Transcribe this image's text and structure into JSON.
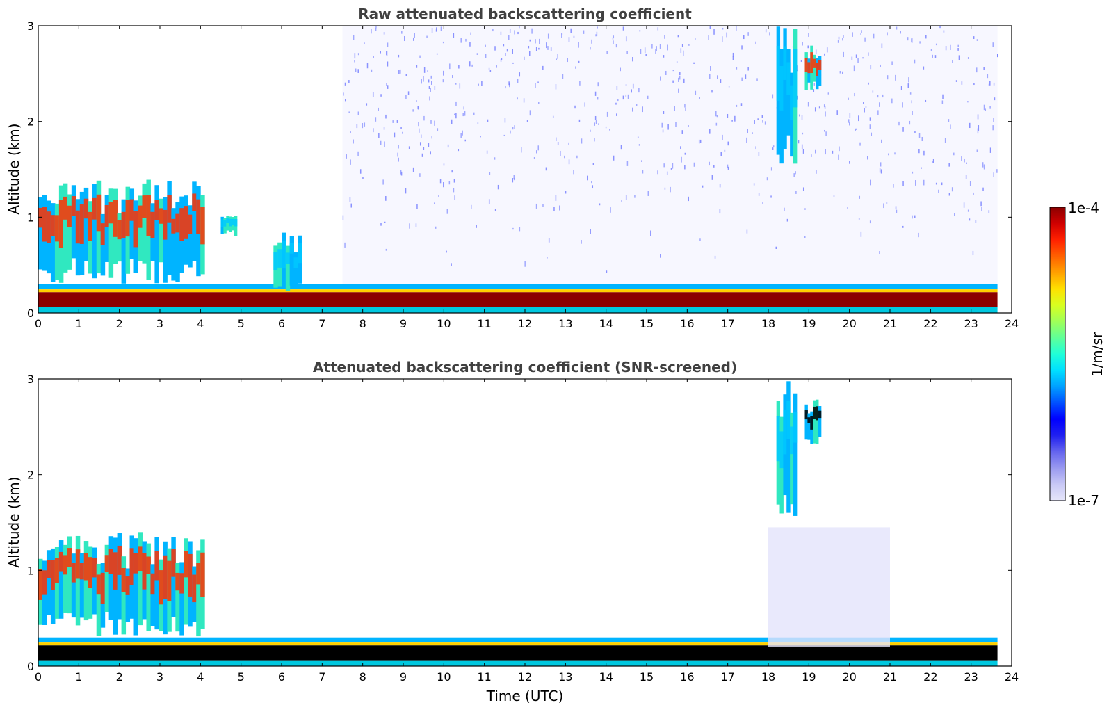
{
  "chart_data": [
    {
      "type": "heatmap",
      "title": "Raw attenuated backscattering coefficient",
      "xlabel": "",
      "ylabel": "Altitude (km)",
      "xlim": [
        0,
        24
      ],
      "ylim": [
        0,
        3
      ],
      "xticks": [
        "0",
        "1",
        "2",
        "3",
        "4",
        "5",
        "6",
        "7",
        "8",
        "9",
        "10",
        "11",
        "12",
        "13",
        "14",
        "15",
        "16",
        "17",
        "18",
        "19",
        "20",
        "21",
        "22",
        "23",
        "24"
      ],
      "yticks": [
        "0",
        "1",
        "2",
        "3"
      ],
      "data_end_hour": 23.65,
      "features": [
        {
          "name": "boundary-layer",
          "time": [
            0,
            23.65
          ],
          "altitude_km": [
            0,
            0.3
          ],
          "intensity": "high"
        },
        {
          "name": "low-cloud-morning",
          "time": [
            0,
            4.1
          ],
          "altitude_km": [
            0.3,
            1.4
          ],
          "intensity": "high"
        },
        {
          "name": "isolated-cloud",
          "time": [
            4.5,
            4.9
          ],
          "altitude_km": [
            0.8,
            1.05
          ],
          "intensity": "medium"
        },
        {
          "name": "isolated-cloud",
          "time": [
            5.8,
            6.5
          ],
          "altitude_km": [
            0.2,
            0.85
          ],
          "intensity": "medium"
        },
        {
          "name": "background-noise",
          "time": [
            7.5,
            23.65
          ],
          "altitude_km": [
            0.3,
            3.0
          ],
          "intensity": "low"
        },
        {
          "name": "high-cloud",
          "time": [
            18.2,
            18.7
          ],
          "altitude_km": [
            1.5,
            3.0
          ],
          "intensity": "medium"
        },
        {
          "name": "high-cloud",
          "time": [
            18.9,
            19.3
          ],
          "altitude_km": [
            2.3,
            2.8
          ],
          "intensity": "high"
        }
      ]
    },
    {
      "type": "heatmap",
      "title": "Attenuated backscattering coefficient (SNR-screened)",
      "xlabel": "Time (UTC)",
      "ylabel": "Altitude (km)",
      "xlim": [
        0,
        24
      ],
      "ylim": [
        0,
        3
      ],
      "xticks": [
        "0",
        "1",
        "2",
        "3",
        "4",
        "5",
        "6",
        "7",
        "8",
        "9",
        "10",
        "11",
        "12",
        "13",
        "14",
        "15",
        "16",
        "17",
        "18",
        "19",
        "20",
        "21",
        "22",
        "23",
        "24"
      ],
      "yticks": [
        "0",
        "1",
        "2",
        "3"
      ],
      "data_end_hour": 23.65,
      "features": [
        {
          "name": "boundary-layer",
          "time": [
            0,
            23.65
          ],
          "altitude_km": [
            0,
            0.3
          ],
          "intensity": "saturated"
        },
        {
          "name": "low-cloud-morning",
          "time": [
            0,
            4.1
          ],
          "altitude_km": [
            0.3,
            1.4
          ],
          "intensity": "high"
        },
        {
          "name": "high-cloud",
          "time": [
            18.2,
            18.7
          ],
          "altitude_km": [
            1.55,
            3.0
          ],
          "intensity": "medium"
        },
        {
          "name": "high-cloud",
          "time": [
            18.9,
            19.3
          ],
          "altitude_km": [
            2.3,
            2.8
          ],
          "intensity": "saturated"
        },
        {
          "name": "faint-layer",
          "time": [
            18.0,
            21.0
          ],
          "altitude_km": [
            0.2,
            1.45
          ],
          "intensity": "low"
        }
      ]
    }
  ],
  "colorbar": {
    "max_label": "1e-4",
    "min_label": "1e-7",
    "units": "1/m/sr",
    "colors": [
      "#e6e6fa",
      "#c8c8f5",
      "#9a9af0",
      "#6464ee",
      "#2020f0",
      "#0000ff",
      "#0050ff",
      "#00a0ff",
      "#00e0ff",
      "#20ffd8",
      "#60ff98",
      "#a0ff58",
      "#d8ff20",
      "#ffe000",
      "#ffa000",
      "#ff6000",
      "#ff2000",
      "#d00000",
      "#8b0000"
    ]
  }
}
